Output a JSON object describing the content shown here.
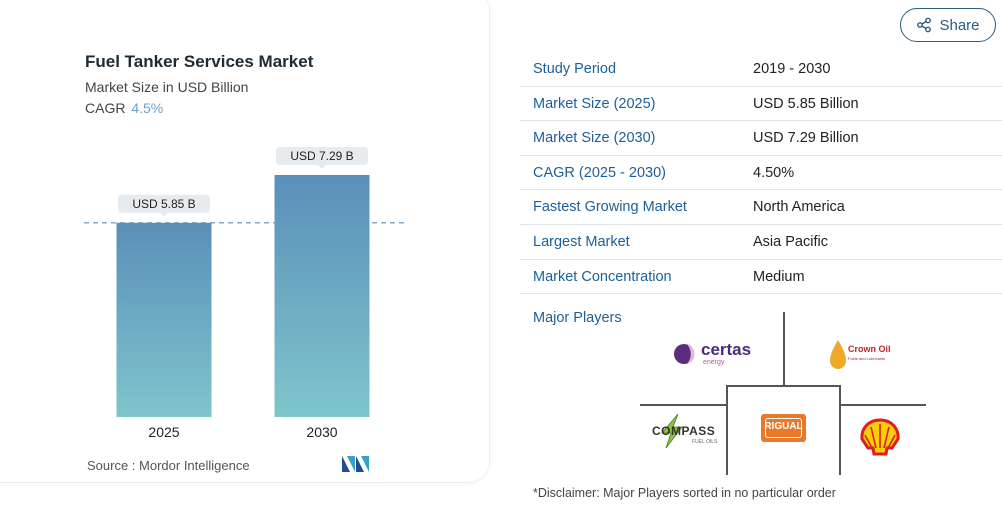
{
  "chart": {
    "title": "Fuel Tanker Services Market",
    "subtitle": "Market Size in USD Billion",
    "cagr_label": "CAGR",
    "cagr_value": "4.5%",
    "source": "Source :  Mordor Intelligence"
  },
  "chart_data": {
    "type": "bar",
    "title": "Fuel Tanker Services Market",
    "subtitle": "Market Size in USD Billion",
    "categories": [
      "2025",
      "2030"
    ],
    "values": [
      5.85,
      7.29
    ],
    "data_labels": [
      "USD 5.85 B",
      "USD 7.29 B"
    ],
    "ylim": [
      0,
      7.29
    ],
    "reference_line": 5.85,
    "colors": {
      "bar_top": "#5b8fb9",
      "bar_bottom": "#7ec5cc",
      "dash": "#5b8fb9",
      "label_bg": "#e6ebef"
    }
  },
  "share": {
    "label": "Share"
  },
  "info_rows": [
    {
      "key": "Study Period",
      "value": "2019 - 2030"
    },
    {
      "key": "Market Size (2025)",
      "value": "USD 5.85 Billion"
    },
    {
      "key": "Market Size (2030)",
      "value": "USD 7.29 Billion"
    },
    {
      "key": "CAGR (2025 - 2030)",
      "value": "4.50%"
    },
    {
      "key": "Fastest Growing Market",
      "value": "North America"
    },
    {
      "key": "Largest Market",
      "value": "Asia Pacific"
    },
    {
      "key": "Market Concentration",
      "value": "Medium"
    }
  ],
  "players": {
    "label": "Major Players",
    "logos": {
      "certas": "certas",
      "certas_sub": "energy",
      "crown": "Crown Oil",
      "crown_sub": "Fuels and Lubricants",
      "compass": "COMPASS",
      "compass_sub": "FUEL OILS",
      "rigual": "RIGUAL"
    }
  },
  "disclaimer": "*Disclaimer: Major Players sorted in no particular order",
  "colors": {
    "accent": "#1d5f99",
    "share": "#2c5b7d"
  }
}
